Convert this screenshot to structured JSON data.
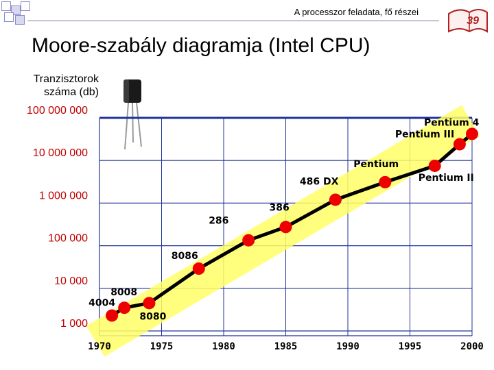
{
  "header": {
    "text": "A processzor feladata, fő részei",
    "page_number": "39"
  },
  "title": "Moore-szabály diagramja (Intel CPU)",
  "colors": {
    "band": "#ffff66",
    "line": "#000000",
    "point": "#ee0000",
    "tick_text": "#c00000",
    "grid": "#223399"
  },
  "chart_data": {
    "type": "line",
    "ylabel": "Tranzisztorok\nszáma (db)",
    "xlabel": "",
    "y_scale": "log",
    "xlim": [
      1970,
      2000
    ],
    "ylim": [
      1000,
      100000000
    ],
    "x_ticks": [
      "1970",
      "1975",
      "1980",
      "1985",
      "1990",
      "1995",
      "2000"
    ],
    "y_ticks": [
      "100 000 000",
      "10 000 000",
      "1 000 000",
      "100 000",
      "10 000",
      "1 000"
    ],
    "grid": true,
    "series": [
      {
        "points": [
          {
            "label": "4004",
            "x": 1971,
            "y": 2300
          },
          {
            "label": "8008",
            "x": 1972,
            "y": 3500
          },
          {
            "label": "8080",
            "x": 1974,
            "y": 4500
          },
          {
            "label": "8086",
            "x": 1978,
            "y": 29000
          },
          {
            "label": "286",
            "x": 1982,
            "y": 134000
          },
          {
            "label": "386",
            "x": 1985,
            "y": 275000
          },
          {
            "label": "486 DX",
            "x": 1989,
            "y": 1200000
          },
          {
            "label": "Pentium",
            "x": 1993,
            "y": 3100000
          },
          {
            "label": "Pentium II",
            "x": 1997,
            "y": 7500000
          },
          {
            "label": "Pentium III",
            "x": 1999,
            "y": 24000000
          },
          {
            "label": "Pentium 4",
            "x": 2000,
            "y": 42000000
          }
        ]
      }
    ]
  }
}
